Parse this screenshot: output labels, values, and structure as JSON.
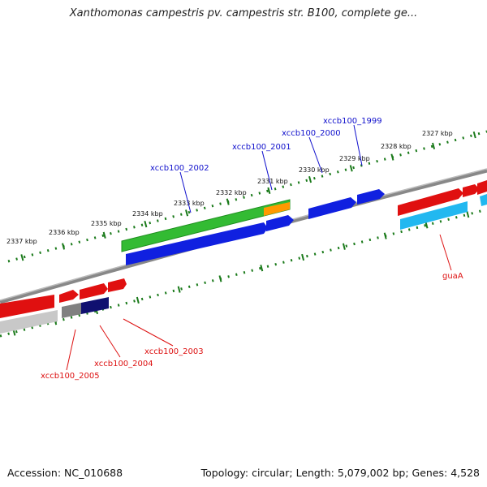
{
  "title": "Xanthomonas campestris pv. campestris str. B100, complete ge...",
  "footer": {
    "accession": "Accession: NC_010688",
    "summary": "Topology: circular; Length: 5,079,002 bp; Genes: 4,528"
  },
  "colors": {
    "backbone": "#8a8a8a",
    "tick": "#1a7a1a",
    "label_top": "#1010cc",
    "label_bottom": "#dd1111",
    "red": "#e01010",
    "blue": "#1020e0",
    "green": "#33bb33",
    "orange": "#ff9900",
    "cyan": "#22b8f0",
    "gray": "#808080",
    "navy": "#101070",
    "lightgray": "#c8c8c8"
  },
  "kbp_labels": [
    "2327 kbp",
    "2328 kbp",
    "2329 kbp",
    "2330 kbp",
    "2331 kbp",
    "2332 kbp",
    "2333 kbp",
    "2334 kbp",
    "2335 kbp",
    "2336 kbp",
    "2337 kbp"
  ],
  "gene_labels": [
    "xccb100_1999",
    "xccb100_2000",
    "xccb100_2001",
    "xccb100_2002",
    "guaA",
    "xccb100_2003",
    "xccb100_2004",
    "xccb100_2005"
  ]
}
